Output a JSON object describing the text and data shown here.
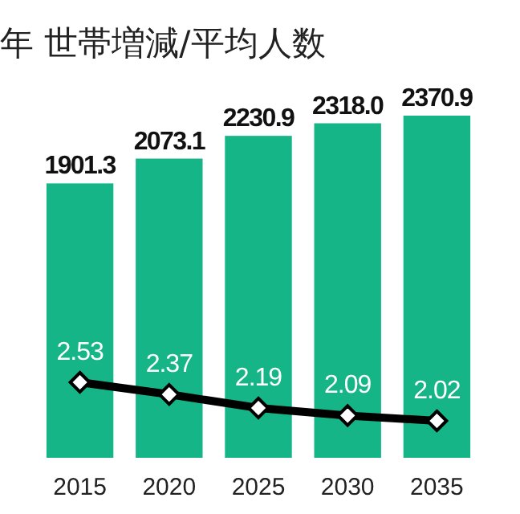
{
  "chart_data": {
    "type": "bar",
    "title": "年 世帯増減/平均人数",
    "categories": [
      "2015",
      "2020",
      "2025",
      "2030",
      "2035"
    ],
    "series": [
      {
        "color": "#16b587",
        "values": [
          1901.3,
          2073.1,
          2230.9,
          2318.0,
          2370.9
        ],
        "value_labels": [
          "1901.3",
          "2073.1",
          "2230.9",
          "2318.0",
          "2370.9"
        ]
      },
      {
        "type": "line",
        "axis": "y2",
        "color": "#000000",
        "values": [
          2.53,
          2.37,
          2.19,
          2.09,
          2.02
        ],
        "value_labels": [
          "2.53",
          "2.37",
          "2.19",
          "2.09",
          "2.02"
        ]
      }
    ],
    "marker": "diamond",
    "tick_labels": "x"
  }
}
